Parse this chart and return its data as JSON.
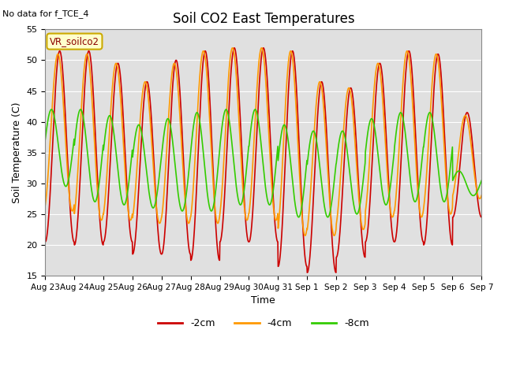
{
  "title": "Soil CO2 East Temperatures",
  "subtitle": "No data for f_TCE_4",
  "xlabel": "Time",
  "ylabel": "Soil Temperature (C)",
  "ylim": [
    15,
    55
  ],
  "legend_label": "VR_soilco2",
  "series_labels": [
    "-2cm",
    "-4cm",
    "-8cm"
  ],
  "series_colors": [
    "#cc0000",
    "#ff9900",
    "#33cc00"
  ],
  "background_color": "#e0e0e0",
  "xtick_labels": [
    "Aug 23",
    "Aug 24",
    "Aug 25",
    "Aug 26",
    "Aug 27",
    "Aug 28",
    "Aug 29",
    "Aug 30",
    "Aug 31",
    "Sep 1",
    "Sep 2",
    "Sep 3",
    "Sep 4",
    "Sep 5",
    "Sep 6",
    "Sep 7"
  ],
  "num_days": 15,
  "peaks_2cm": [
    51.5,
    51.5,
    49.5,
    46.5,
    50.0,
    51.5,
    52.0,
    52.0,
    51.5,
    46.5,
    45.5,
    49.5,
    51.5,
    51.0,
    41.5
  ],
  "troughs_2cm": [
    20.5,
    20.0,
    20.5,
    18.5,
    18.5,
    17.5,
    20.5,
    20.5,
    16.5,
    15.5,
    18.0,
    20.5,
    20.5,
    20.0,
    24.5
  ],
  "peaks_4cm": [
    51.0,
    51.0,
    49.5,
    46.5,
    49.5,
    51.5,
    52.0,
    52.0,
    51.5,
    46.5,
    45.5,
    49.5,
    51.5,
    51.0,
    41.0
  ],
  "troughs_4cm": [
    25.5,
    24.0,
    24.0,
    23.5,
    23.5,
    23.5,
    24.0,
    24.0,
    21.5,
    21.5,
    22.5,
    24.5,
    24.5,
    25.0,
    27.5
  ],
  "peaks_8cm": [
    42.0,
    42.0,
    41.0,
    39.5,
    40.5,
    41.5,
    42.0,
    42.0,
    39.5,
    38.5,
    38.5,
    40.5,
    41.5,
    41.5,
    32.0
  ],
  "troughs_8cm": [
    29.5,
    27.0,
    26.5,
    26.0,
    25.5,
    25.5,
    26.5,
    26.5,
    24.5,
    24.5,
    25.0,
    26.5,
    27.0,
    27.0,
    28.0
  ],
  "phase_2cm": 0.0,
  "phase_4cm": 0.4,
  "phase_8cm": 1.8
}
